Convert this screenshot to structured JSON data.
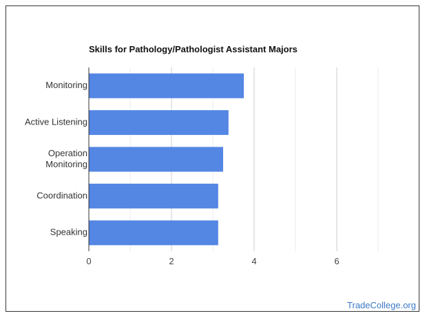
{
  "chart_data": {
    "type": "bar",
    "orientation": "horizontal",
    "title": "Skills for Pathology/Pathologist Assistant Majors",
    "categories": [
      [
        "Monitoring"
      ],
      [
        "Active Listening"
      ],
      [
        "Operation",
        "Monitoring"
      ],
      [
        "Coordination"
      ],
      [
        "Speaking"
      ]
    ],
    "values": [
      3.75,
      3.38,
      3.25,
      3.13,
      3.13
    ],
    "xlim": [
      0,
      8
    ],
    "xticks": [
      0,
      2,
      4,
      6
    ],
    "xlabel": "",
    "ylabel": "",
    "grid": true,
    "bar_color": "#5486e4"
  },
  "watermark": "TradeCollege.org"
}
